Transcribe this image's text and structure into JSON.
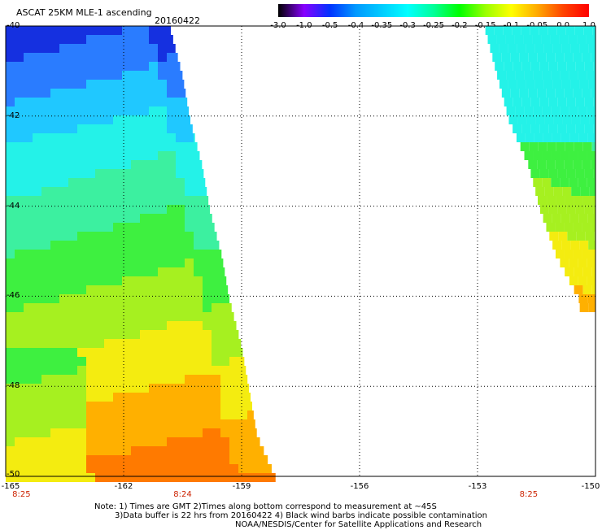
{
  "header": {
    "title": "ASCAT 25KM MLE-1 ascending",
    "date": "20160422"
  },
  "colorbar": {
    "labels": [
      "-3.0",
      "-1.0",
      "-0.5",
      "-0.4",
      "-0.35",
      "-0.3",
      "-0.25",
      "-0.2",
      "-0.15",
      "-0.1",
      "-0.05",
      "0.0",
      "1.0"
    ],
    "colors": [
      "#000000",
      "#8800ff",
      "#0033ff",
      "#0099ff",
      "#00ccff",
      "#00ffff",
      "#00ff99",
      "#00ff00",
      "#99ff00",
      "#ffff00",
      "#ffaa00",
      "#ff4400",
      "#ff0000"
    ]
  },
  "axes": {
    "lat_labels": [
      "-40",
      "-42",
      "-44",
      "-46",
      "-48",
      "-50"
    ],
    "lon_labels": [
      "-165",
      "-162",
      "-159",
      "-156",
      "-153",
      "-150"
    ],
    "time_labels": [
      "8:25",
      "8:24",
      "8:25"
    ]
  },
  "map_data": {
    "lat_range": [
      -50,
      -40
    ],
    "lon_range": [
      -165,
      -150
    ],
    "swaths": [
      {
        "name": "west",
        "lon_min": -165,
        "edge_lon": {
          "-40": -160.8,
          "-41": -160.5,
          "-42": -160.3,
          "-43": -160.0,
          "-44": -159.8,
          "-45": -159.5,
          "-46": -159.3,
          "-47": -159.0,
          "-48": -158.8,
          "-49": -158.6,
          "-50": -158.1
        }
      },
      {
        "name": "east",
        "lon_max": -150,
        "edge_lon": {
          "-40": -152.8,
          "-41": -152.5,
          "-42": -152.2,
          "-43": -151.7,
          "-44": -151.4,
          "-45": -151.0,
          "-46": -150.4
        }
      }
    ]
  },
  "notes": {
    "line1": "Note: 1) Times are GMT 2)Times along bottom correspond to measurement at ~45S",
    "line2": "3)Data buffer is 22 hrs from 20160422 4) Black wind barbs indicate possible contamination",
    "line3": "NOAA/NESDIS/Center for Satellite Applications and Research"
  }
}
